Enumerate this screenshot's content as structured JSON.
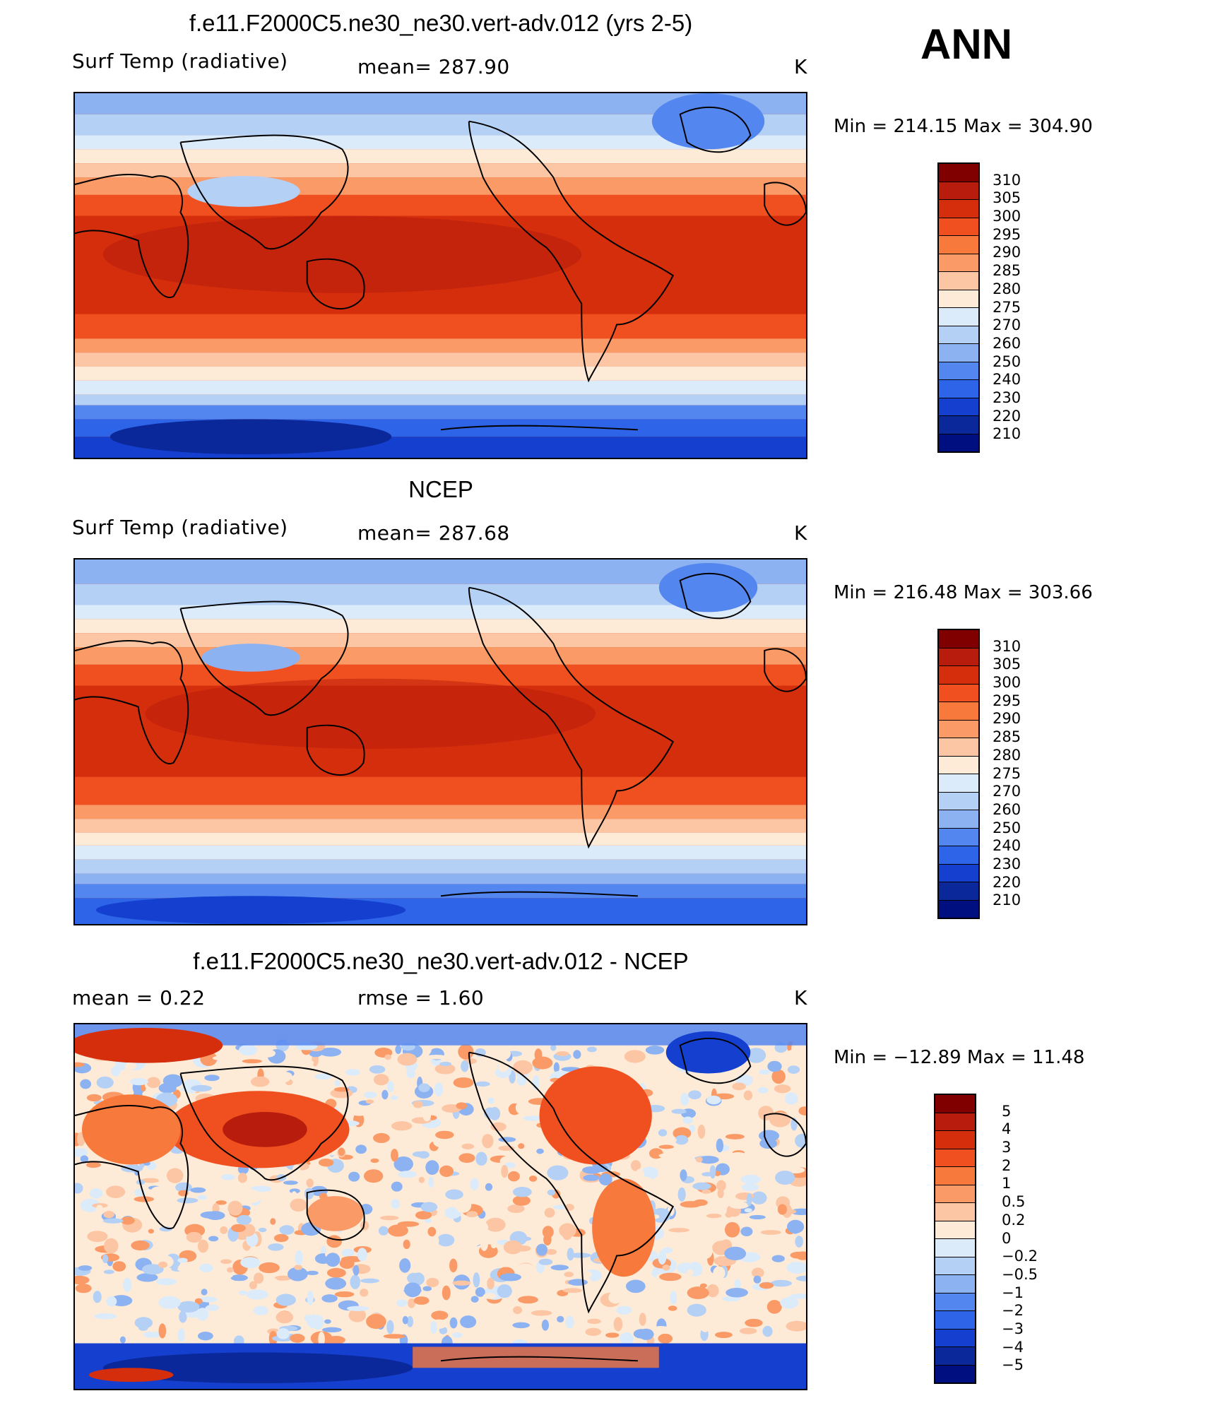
{
  "season": "ANN",
  "panels": [
    {
      "title": "f.e11.F2000C5.ne30_ne30.vert-adv.012 (yrs 2-5)",
      "left_label": "Surf Temp (radiative)",
      "mid_label": "mean=  287.90",
      "units": "K",
      "stats": "Min  =  214.15  Max  =  304.90",
      "colorbar_labels": [
        "310",
        "305",
        "300",
        "295",
        "290",
        "285",
        "280",
        "275",
        "270",
        "260",
        "250",
        "240",
        "230",
        "220",
        "210"
      ],
      "colors": [
        "#800000",
        "#B71C0C",
        "#D42E0C",
        "#F0501F",
        "#F7793C",
        "#FA9A66",
        "#FCC6A4",
        "#FDEBD8",
        "#DCEBFA",
        "#B5D0F5",
        "#8CB2F2",
        "#5486F0",
        "#2E64E8",
        "#1540CF",
        "#0A2899",
        "#000F7F"
      ]
    },
    {
      "title": "NCEP",
      "left_label": "Surf Temp (radiative)",
      "mid_label": "mean=  287.68",
      "units": "K",
      "stats": "Min  =  216.48  Max  =  303.66",
      "colorbar_labels": [
        "310",
        "305",
        "300",
        "295",
        "290",
        "285",
        "280",
        "275",
        "270",
        "260",
        "250",
        "240",
        "230",
        "220",
        "210"
      ],
      "colors": [
        "#800000",
        "#B71C0C",
        "#D42E0C",
        "#F0501F",
        "#F7793C",
        "#FA9A66",
        "#FCC6A4",
        "#FDEBD8",
        "#DCEBFA",
        "#B5D0F5",
        "#8CB2F2",
        "#5486F0",
        "#2E64E8",
        "#1540CF",
        "#0A2899",
        "#000F7F"
      ]
    },
    {
      "title": "f.e11.F2000C5.ne30_ne30.vert-adv.012 - NCEP",
      "left_label": "mean  =     0.22",
      "mid_label": "rmse  =     1.60",
      "units": "K",
      "stats": "Min  =  −12.89  Max  =    11.48",
      "colorbar_labels": [
        "5",
        "4",
        "3",
        "2",
        "1",
        "0.5",
        "0.2",
        "0",
        "−0.2",
        "−0.5",
        "−1",
        "−2",
        "−3",
        "−4",
        "−5"
      ],
      "colors": [
        "#800000",
        "#B71C0C",
        "#D42E0C",
        "#F0501F",
        "#F7793C",
        "#FA9A66",
        "#FCC6A4",
        "#FDEBD8",
        "#DCEBFA",
        "#B5D0F5",
        "#8CB2F2",
        "#5486F0",
        "#2E64E8",
        "#1540CF",
        "#0A2899",
        "#000F7F"
      ]
    }
  ]
}
